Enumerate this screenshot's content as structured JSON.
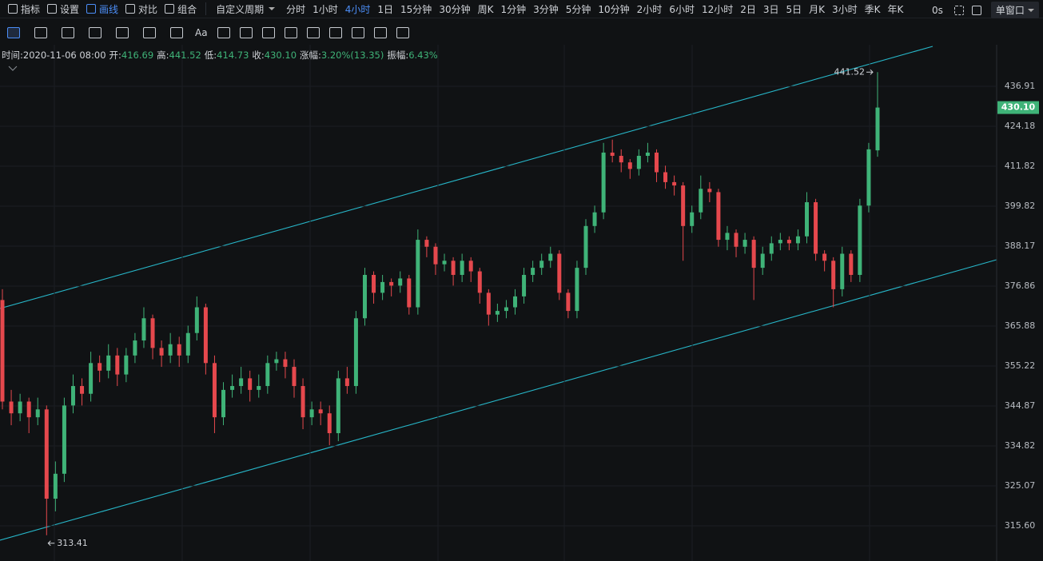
{
  "toolbar": {
    "tools": [
      "指标",
      "设置",
      "画线",
      "对比",
      "组合"
    ],
    "active_tool": 2,
    "custom": "自定义周期",
    "periods": [
      "分时",
      "1小时",
      "4小时",
      "1日",
      "15分钟",
      "30分钟",
      "周K",
      "1分钟",
      "3分钟",
      "5分钟",
      "10分钟",
      "2小时",
      "6小时",
      "12小时",
      "2日",
      "3日",
      "5日",
      "月K",
      "3小时",
      "季K",
      "年K"
    ],
    "active_period": 2,
    "timer": "0s",
    "window": "单窗口",
    "text_tool": "Aa"
  },
  "info": [
    {
      "label": "时间:",
      "value": "2020-11-06 08:00"
    },
    {
      "label": "开:",
      "value": "416.69"
    },
    {
      "label": "高:",
      "value": "441.52"
    },
    {
      "label": "低:",
      "value": "414.73"
    },
    {
      "label": "收:",
      "value": "430.10"
    },
    {
      "label": "涨幅:",
      "value": "3.20%(13.35)"
    },
    {
      "label": "振幅:",
      "value": "6.43%"
    }
  ],
  "chart_data": {
    "type": "candlestick",
    "log_scale": true,
    "grid": true,
    "up_color": "#3fb378",
    "down_color": "#e5484d",
    "ylim": [
      307.49,
      450.56
    ],
    "yticks": [
      {
        "value": 315.6,
        "label": "315.60"
      },
      325.07,
      334.82,
      344.87,
      355.22,
      365.88,
      376.86,
      388.17,
      399.82,
      411.82,
      424.18,
      436.91
    ],
    "last_price": {
      "value": 430.1,
      "label": "430.10"
    },
    "ohlc": [
      [
        373,
        376,
        344,
        346
      ],
      [
        346,
        349,
        340,
        343
      ],
      [
        343,
        348,
        341,
        346
      ],
      [
        346,
        347,
        338,
        342
      ],
      [
        342,
        347,
        340,
        344
      ],
      [
        344,
        345,
        313.41,
        322
      ],
      [
        322,
        331,
        319,
        328
      ],
      [
        328,
        347,
        326,
        345
      ],
      [
        345,
        353,
        343,
        350
      ],
      [
        350,
        352,
        345,
        348
      ],
      [
        348,
        359,
        346,
        356
      ],
      [
        356,
        358,
        351,
        354
      ],
      [
        354,
        361,
        352,
        358
      ],
      [
        358,
        360,
        350,
        353
      ],
      [
        353,
        360,
        351,
        358
      ],
      [
        358,
        364,
        356,
        362
      ],
      [
        362,
        371,
        360,
        368
      ],
      [
        368,
        369,
        357,
        360
      ],
      [
        360,
        362,
        355,
        358
      ],
      [
        358,
        364,
        356,
        361
      ],
      [
        361,
        363,
        355,
        358
      ],
      [
        358,
        366,
        356,
        364
      ],
      [
        364,
        374,
        362,
        371
      ],
      [
        371,
        372,
        353,
        356
      ],
      [
        356,
        358,
        338,
        342
      ],
      [
        342,
        351,
        340,
        349
      ],
      [
        349,
        353,
        347,
        350
      ],
      [
        350,
        355,
        348,
        352
      ],
      [
        352,
        354,
        346,
        349
      ],
      [
        349,
        353,
        347,
        350
      ],
      [
        350,
        358,
        348,
        356
      ],
      [
        356,
        359,
        354,
        357
      ],
      [
        357,
        359,
        352,
        355
      ],
      [
        355,
        357,
        347,
        350
      ],
      [
        350,
        352,
        339,
        342
      ],
      [
        342,
        346,
        340,
        344
      ],
      [
        344,
        346,
        340,
        343
      ],
      [
        343,
        345,
        335,
        338
      ],
      [
        338,
        354,
        336,
        352
      ],
      [
        352,
        355,
        348,
        350
      ],
      [
        350,
        370,
        348,
        368
      ],
      [
        368,
        382,
        366,
        380
      ],
      [
        380,
        381,
        372,
        375
      ],
      [
        375,
        380,
        373,
        378
      ],
      [
        378,
        379,
        374,
        377
      ],
      [
        377,
        381,
        375,
        379
      ],
      [
        379,
        380,
        369,
        371
      ],
      [
        371,
        393,
        369,
        390
      ],
      [
        390,
        391,
        385,
        388
      ],
      [
        388,
        389,
        380,
        383
      ],
      [
        383,
        386,
        381,
        384
      ],
      [
        384,
        385,
        377,
        380
      ],
      [
        380,
        386,
        378,
        384
      ],
      [
        384,
        385,
        378,
        381
      ],
      [
        381,
        382,
        372,
        375
      ],
      [
        375,
        376,
        366,
        369
      ],
      [
        369,
        372,
        367,
        370
      ],
      [
        370,
        373,
        368,
        371
      ],
      [
        371,
        376,
        369,
        374
      ],
      [
        374,
        382,
        372,
        380
      ],
      [
        380,
        384,
        378,
        382
      ],
      [
        382,
        386,
        380,
        384
      ],
      [
        384,
        388,
        382,
        386
      ],
      [
        386,
        387,
        373,
        375
      ],
      [
        375,
        376,
        368,
        370
      ],
      [
        370,
        384,
        368,
        382
      ],
      [
        382,
        396,
        380,
        394
      ],
      [
        394,
        400,
        392,
        398
      ],
      [
        398,
        419,
        396,
        416
      ],
      [
        416,
        420,
        413,
        415
      ],
      [
        415,
        417,
        410,
        413
      ],
      [
        413,
        414,
        408,
        411
      ],
      [
        411,
        417,
        409,
        415
      ],
      [
        415,
        419,
        413,
        416
      ],
      [
        416,
        417,
        407,
        410
      ],
      [
        410,
        412,
        405,
        407
      ],
      [
        407,
        409,
        403,
        406
      ],
      [
        406,
        407,
        384,
        394
      ],
      [
        394,
        400,
        392,
        398
      ],
      [
        398,
        409,
        396,
        405
      ],
      [
        405,
        407,
        401,
        404
      ],
      [
        404,
        405,
        388,
        390
      ],
      [
        390,
        394,
        387,
        392
      ],
      [
        392,
        393,
        385,
        388
      ],
      [
        388,
        392,
        386,
        390
      ],
      [
        390,
        391,
        373,
        382
      ],
      [
        382,
        388,
        380,
        386
      ],
      [
        386,
        391,
        384,
        389
      ],
      [
        389,
        392,
        387,
        390
      ],
      [
        390,
        391,
        387,
        389
      ],
      [
        389,
        393,
        387,
        391
      ],
      [
        391,
        404,
        389,
        401
      ],
      [
        401,
        402,
        384,
        386
      ],
      [
        386,
        387,
        381,
        384
      ],
      [
        384,
        385,
        371,
        376
      ],
      [
        376,
        388,
        374,
        386
      ],
      [
        386,
        387,
        378,
        380
      ],
      [
        380,
        402,
        378,
        400
      ],
      [
        400,
        419,
        398,
        417
      ],
      [
        416.69,
        441.52,
        414.73,
        430.1
      ]
    ]
  }
}
